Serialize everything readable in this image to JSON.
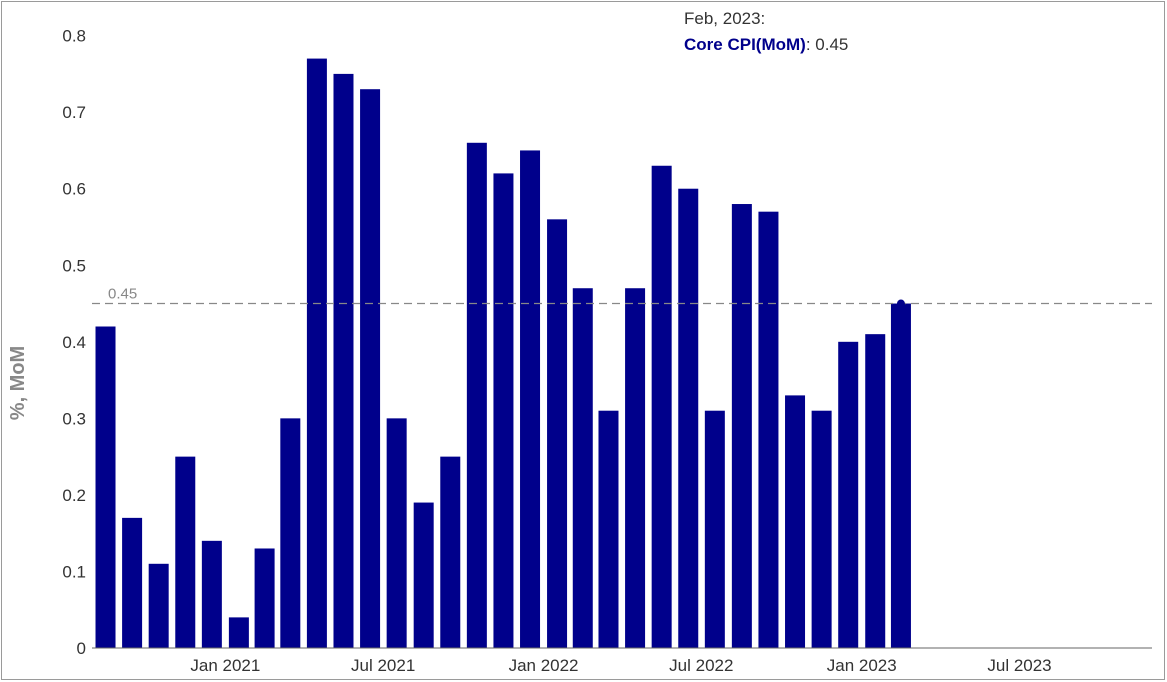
{
  "chart_data": {
    "type": "bar",
    "ylabel": "%, MoM",
    "ylim": [
      0,
      0.84
    ],
    "yticks": [
      "0",
      "0.1",
      "0.2",
      "0.3",
      "0.4",
      "0.5",
      "0.6",
      "0.7",
      "0.8"
    ],
    "xlim": [
      "2020-08-01",
      "2023-11-30"
    ],
    "xtick_labels": [
      "Jan 2021",
      "Jul 2021",
      "Jan 2022",
      "Jul 2022",
      "Jan 2023",
      "Jul 2023"
    ],
    "xtick_dates": [
      "2021-01-01",
      "2021-07-01",
      "2022-01-01",
      "2022-07-01",
      "2023-01-01",
      "2023-07-01"
    ],
    "series": [
      {
        "name": "Core CPI(MoM)",
        "color": "#00008b",
        "x": [
          "2020-08",
          "2020-09",
          "2020-10",
          "2020-11",
          "2020-12",
          "2021-01",
          "2021-02",
          "2021-03",
          "2021-04",
          "2021-05",
          "2021-06",
          "2021-07",
          "2021-08",
          "2021-09",
          "2021-10",
          "2021-11",
          "2021-12",
          "2022-01",
          "2022-02",
          "2022-03",
          "2022-04",
          "2022-05",
          "2022-06",
          "2022-07",
          "2022-08",
          "2022-09",
          "2022-10",
          "2022-11",
          "2022-12",
          "2023-01",
          "2023-02"
        ],
        "values": [
          0.42,
          0.17,
          0.11,
          0.25,
          0.14,
          0.04,
          0.13,
          0.3,
          0.77,
          0.75,
          0.73,
          0.3,
          0.19,
          0.25,
          0.66,
          0.62,
          0.65,
          0.56,
          0.47,
          0.31,
          0.47,
          0.63,
          0.6,
          0.31,
          0.58,
          0.57,
          0.33,
          0.31,
          0.4,
          0.41,
          0.45
        ]
      }
    ],
    "reference_line": {
      "value": 0.45,
      "label": "0.45",
      "style": "dashed",
      "color": "#888888"
    },
    "tooltip": {
      "date": "Feb, 2023:",
      "series": "Core CPI(MoM)",
      "value": ": 0.45",
      "series_color": "#00008b"
    },
    "grid": false,
    "legend": "none"
  }
}
